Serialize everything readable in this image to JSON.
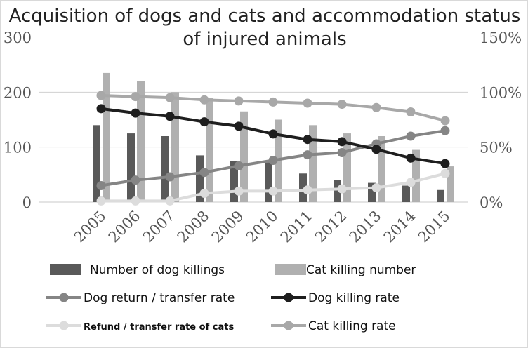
{
  "chart_data": {
    "type": "bar+line",
    "title": "Acquisition of dogs and cats and accommodation status of injured animals",
    "categories": [
      "2005",
      "2006",
      "2007",
      "2008",
      "2009",
      "2010",
      "2011",
      "2012",
      "2013",
      "2014",
      "2015"
    ],
    "y_left": {
      "range": [
        0,
        300
      ],
      "ticks": [
        "0",
        "100",
        "200",
        "300"
      ]
    },
    "y_right": {
      "range": [
        0,
        150
      ],
      "ticks": [
        "0%",
        "50%",
        "100%",
        "150%"
      ]
    },
    "grid": true,
    "legend_position": "bottom",
    "series": [
      {
        "name": "Number of dog killings",
        "type": "bar",
        "axis": "left",
        "color": "#595959",
        "values": [
          140,
          125,
          120,
          85,
          75,
          72,
          52,
          40,
          35,
          30,
          22
        ]
      },
      {
        "name": "Cat killing number",
        "type": "bar",
        "axis": "left",
        "color": "#b0b0b0",
        "values": [
          235,
          220,
          200,
          190,
          165,
          150,
          140,
          125,
          120,
          95,
          65
        ]
      },
      {
        "name": "Dog return / transfer rate",
        "type": "line",
        "axis": "right",
        "color": "#858585",
        "values": [
          15,
          20,
          23,
          27,
          33,
          38,
          43,
          45,
          53,
          60,
          65
        ]
      },
      {
        "name": "Dog killing rate",
        "type": "line",
        "axis": "right",
        "color": "#1e1e1e",
        "values": [
          85,
          81,
          78,
          73,
          69,
          62,
          57,
          55,
          48,
          40,
          35
        ]
      },
      {
        "name": "Refund / transfer rate of cats",
        "type": "line",
        "axis": "right",
        "color": "#dcdcdc",
        "values": [
          1,
          1,
          1,
          8,
          10,
          10,
          11,
          12,
          13,
          18,
          26
        ]
      },
      {
        "name": "Cat killing rate",
        "type": "line",
        "axis": "right",
        "color": "#a8a8a8",
        "values": [
          97,
          96,
          95,
          93,
          92,
          91,
          90,
          89,
          86,
          82,
          74
        ]
      }
    ]
  }
}
